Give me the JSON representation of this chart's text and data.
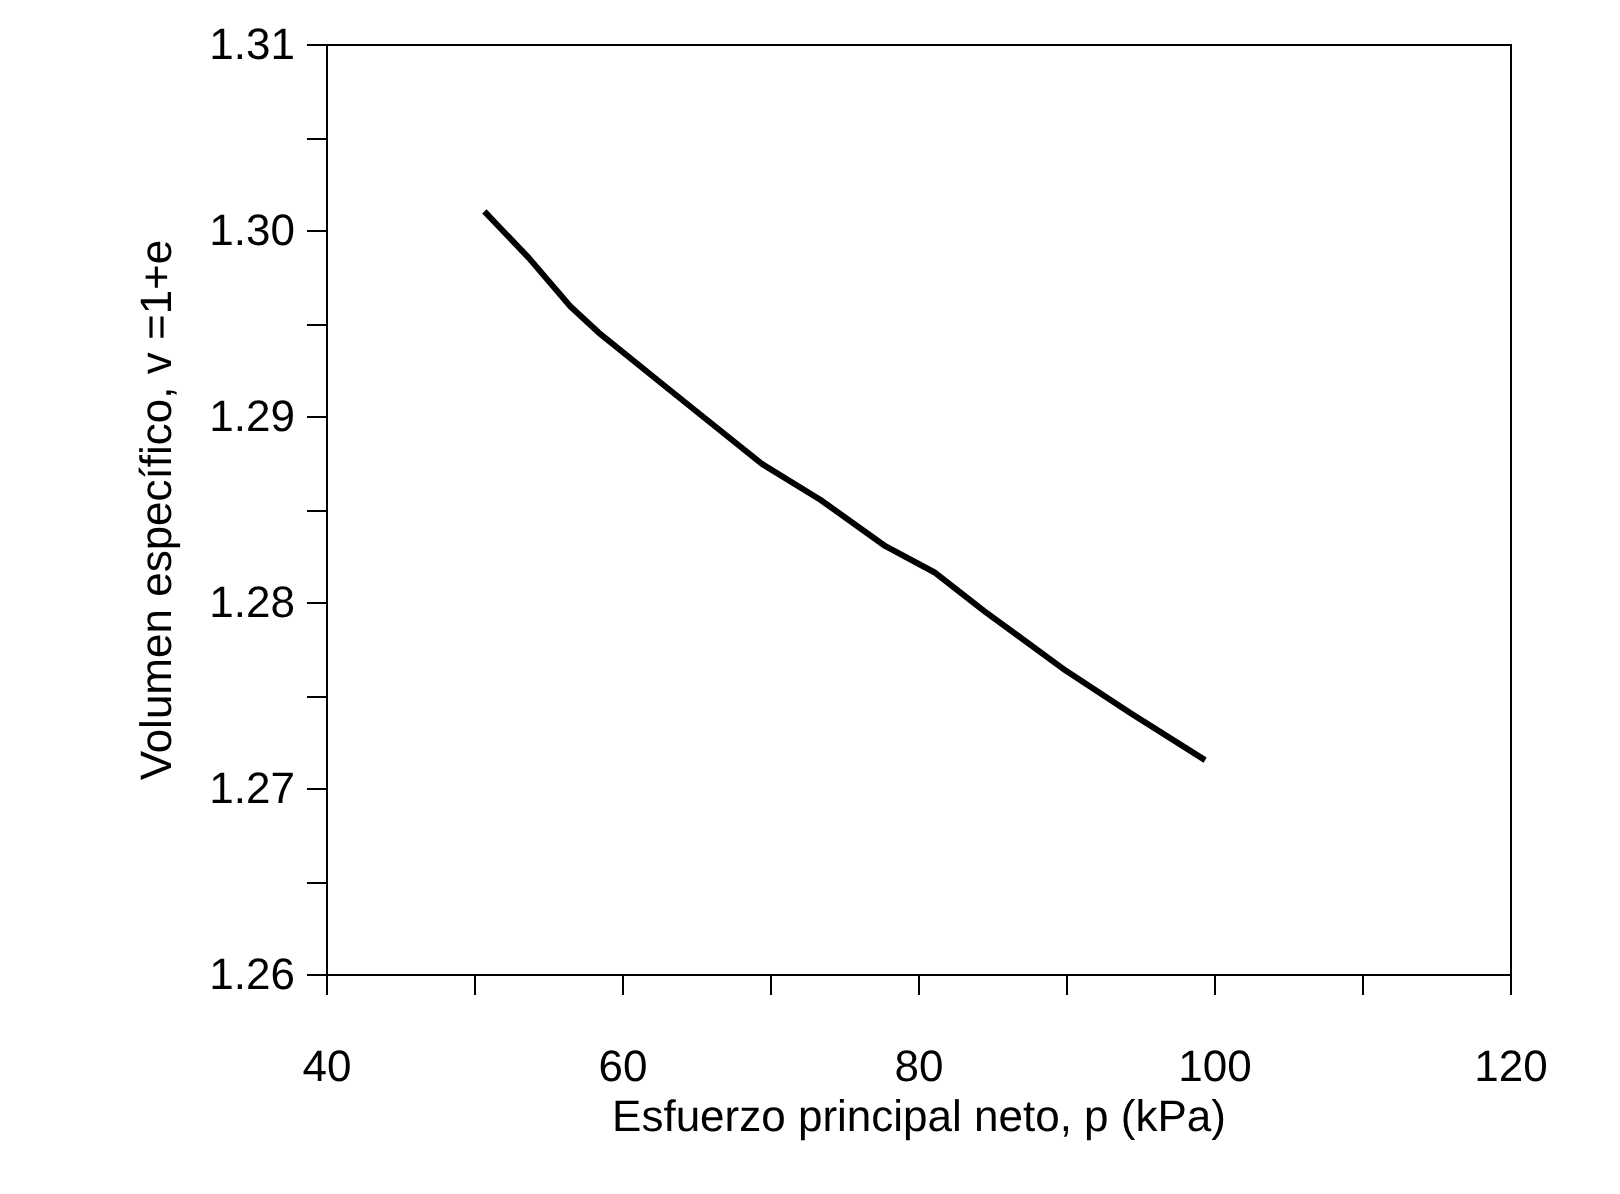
{
  "chart_data": {
    "type": "line",
    "xlabel": "Esfuerzo principal neto, p (kPa)",
    "ylabel": "Volumen específico, v =1+e",
    "x": [
      50.7,
      53.7,
      56.5,
      58.4,
      62.6,
      65.1,
      69.5,
      73.4,
      77.8,
      81.1,
      84.5,
      90.0,
      94.4,
      99.4
    ],
    "series": [
      {
        "color": "#000000",
        "values": [
          1.301,
          1.2985,
          1.2959,
          1.2945,
          1.2918,
          1.2902,
          1.2874,
          1.2855,
          1.283,
          1.2816,
          1.2795,
          1.2763,
          1.274,
          1.2715
        ]
      }
    ],
    "xlim": [
      40,
      120
    ],
    "ylim": [
      1.26,
      1.31
    ],
    "xticks": [
      40,
      {
        "value": 50,
        "label": null
      },
      60,
      {
        "value": 70,
        "label": null
      },
      80,
      {
        "value": 90,
        "label": null
      },
      100,
      {
        "value": 110,
        "label": null
      },
      120
    ],
    "yticks": [
      {
        "value": 1.26,
        "label": "1.26"
      },
      {
        "value": 1.265,
        "label": null
      },
      {
        "value": 1.27,
        "label": "1.27"
      },
      {
        "value": 1.275,
        "label": null
      },
      {
        "value": 1.28,
        "label": "1.28"
      },
      {
        "value": 1.285,
        "label": null
      },
      {
        "value": 1.29,
        "label": "1.29"
      },
      {
        "value": 1.295,
        "label": null
      },
      {
        "value": 1.3,
        "label": "1.30"
      },
      {
        "value": 1.305,
        "label": null
      },
      {
        "value": 1.31,
        "label": "1.31"
      }
    ],
    "grid": false,
    "marker": "none",
    "line_style": "solid"
  }
}
